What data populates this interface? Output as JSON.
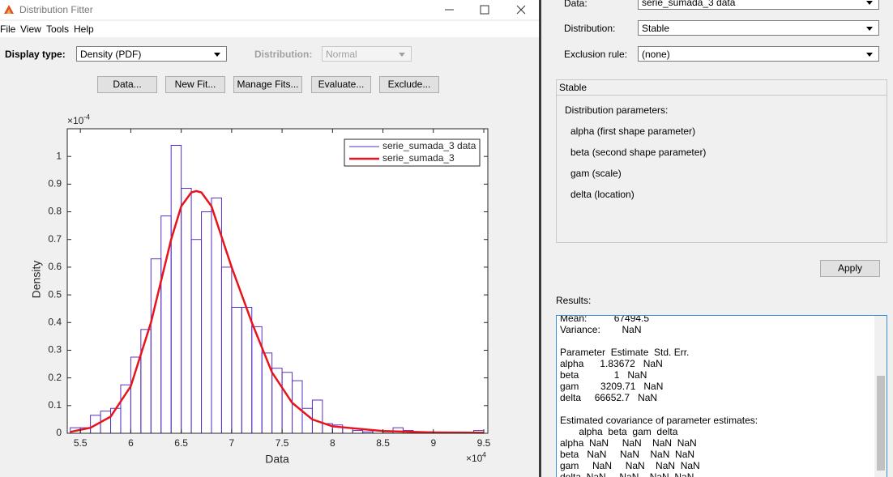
{
  "window": {
    "title": "Distribution Fitter"
  },
  "menu": [
    "File",
    "View",
    "Tools",
    "Help"
  ],
  "toolbar": {
    "display_type_label": "Display type:",
    "display_type": "Density (PDF)",
    "distribution_label": "Distribution:",
    "distribution": "Normal"
  },
  "buttons": [
    "Data...",
    "New Fit...",
    "Manage Fits...",
    "Evaluate...",
    "Exclude..."
  ],
  "chart_data": {
    "type": "histogram",
    "xlabel": "Data",
    "ylabel": "Density",
    "x_multiplier": {
      "base": "×10",
      "exponent": "4"
    },
    "y_multiplier": {
      "base": "×10",
      "exponent": "-4"
    },
    "xlim": [
      5.37,
      9.54
    ],
    "ylim": [
      0,
      1.1
    ],
    "xticks": [
      5.5,
      6,
      6.5,
      7,
      7.5,
      8,
      8.5,
      9,
      9.5
    ],
    "yticks": [
      0,
      0.1,
      0.2,
      0.3,
      0.4,
      0.5,
      0.6,
      0.7,
      0.8,
      0.9,
      1
    ],
    "legend": "upper right",
    "series": [
      {
        "name": "serie_sumada_3 data",
        "color": "#5a2fc2",
        "type": "histogram",
        "bins": [
          5.4,
          5.5,
          5.6,
          5.7,
          5.8,
          5.9,
          6.0,
          6.1,
          6.2,
          6.3,
          6.4,
          6.5,
          6.6,
          6.7,
          6.8,
          6.9,
          7.0,
          7.1,
          7.2,
          7.3,
          7.4,
          7.5,
          7.6,
          7.7,
          7.8,
          7.9,
          8.0,
          8.1,
          8.2,
          8.3,
          8.4,
          8.5,
          8.6,
          8.7,
          8.8,
          8.9,
          9.0,
          9.1,
          9.2,
          9.3,
          9.4,
          9.5
        ],
        "values": [
          0.02,
          0.02,
          0.065,
          0.08,
          0.09,
          0.175,
          0.275,
          0.375,
          0.63,
          0.785,
          1.04,
          0.885,
          0.7,
          0.8,
          0.85,
          0.6,
          0.455,
          0.455,
          0.385,
          0.29,
          0.235,
          0.22,
          0.19,
          0.09,
          0.12,
          0.035,
          0.03,
          0.02,
          0.01,
          0.005,
          0.01,
          0.005,
          0.02,
          0.01,
          0.005,
          0.005,
          0,
          0,
          0,
          0,
          0.01
        ]
      },
      {
        "name": "serie_sumada_3",
        "color": "#e8141b",
        "type": "line",
        "x": [
          5.4,
          5.6,
          5.8,
          6.0,
          6.2,
          6.4,
          6.5,
          6.6,
          6.65,
          6.7,
          6.8,
          7.0,
          7.2,
          7.4,
          7.6,
          7.8,
          8.0,
          8.5,
          9.0,
          9.5
        ],
        "values": [
          0.005,
          0.02,
          0.06,
          0.17,
          0.4,
          0.7,
          0.82,
          0.87,
          0.875,
          0.87,
          0.82,
          0.6,
          0.4,
          0.22,
          0.11,
          0.05,
          0.025,
          0.008,
          0.003,
          0.002
        ]
      }
    ]
  },
  "fit_panel": {
    "data_label": "Data:",
    "data": "serie_sumada_3 data",
    "distribution_label": "Distribution:",
    "distribution": "Stable",
    "exclusion_label": "Exclusion rule:",
    "exclusion": "(none)",
    "group_title": "Stable",
    "parameters_label": "Distribution parameters:",
    "parameters": [
      "alpha (first shape parameter)",
      "beta (second shape parameter)",
      "gam (scale)",
      "delta (location)"
    ],
    "apply": "Apply"
  },
  "results": {
    "label": "Results:",
    "lines": [
      "Mean:          67494.5",
      "Variance:        NaN",
      " ",
      "Parameter  Estimate  Std. Err.",
      "alpha      1.83672   NaN",
      "beta             1   NaN",
      "gam        3209.71   NaN",
      "delta     66652.7   NaN",
      " ",
      "Estimated covariance of parameter estimates:",
      "       alpha  beta  gam  delta",
      "alpha  NaN     NaN    NaN  NaN",
      "beta   NaN     NaN    NaN  NaN",
      "gam     NaN     NaN    NaN  NaN",
      "delta  NaN     NaN    NaN  NaN"
    ]
  }
}
